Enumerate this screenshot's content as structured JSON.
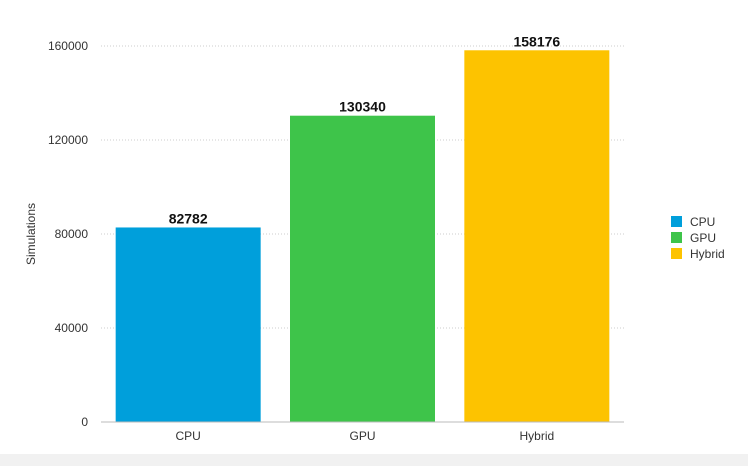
{
  "chart_data": {
    "type": "bar",
    "categories": [
      "CPU",
      "GPU",
      "Hybrid"
    ],
    "values": [
      82782,
      130340,
      158176
    ],
    "colors": [
      "#009fdb",
      "#3ec44a",
      "#fdc300"
    ],
    "title": "",
    "xlabel": "",
    "ylabel": "Simulations",
    "ylim": [
      0,
      160000
    ],
    "yticks": [
      0,
      40000,
      80000,
      120000,
      160000
    ],
    "ytick_labels": [
      "0",
      "40000",
      "80000",
      "120000",
      "160000"
    ],
    "grid": "horizontal dotted",
    "legend": {
      "position": "right",
      "entries": [
        "CPU",
        "GPU",
        "Hybrid"
      ]
    },
    "data_labels": [
      "82782",
      "130340",
      "158176"
    ]
  }
}
